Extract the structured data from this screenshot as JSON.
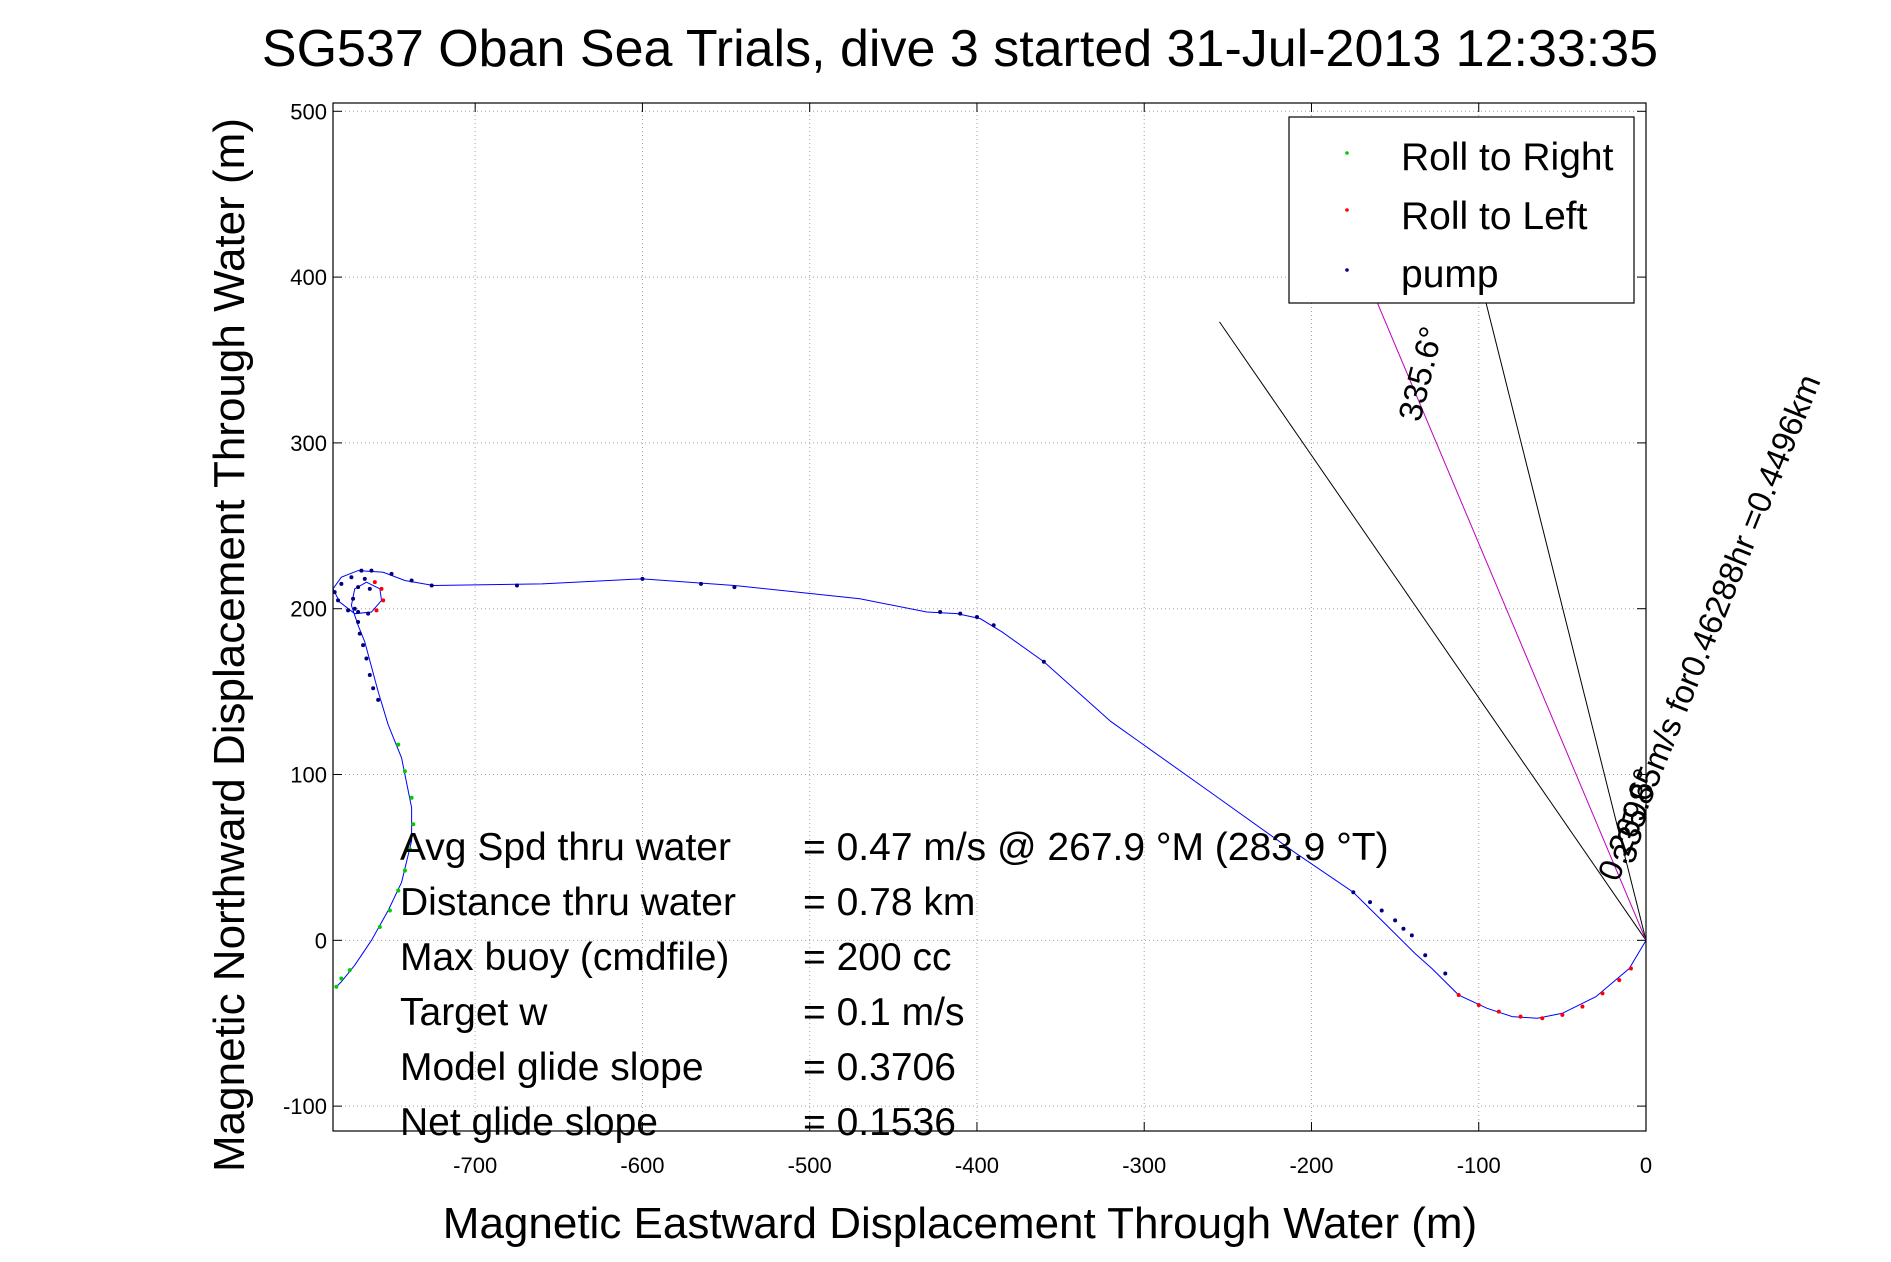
{
  "chart_data": {
    "type": "scatter",
    "title": "SG537 Oban Sea Trials, dive 3 started 31-Jul-2013 12:33:35",
    "xlabel": "Magnetic Eastward Displacement Through Water (m)",
    "ylabel": "Magnetic Northward Displacement Through Water (m)",
    "xlim": [
      -785,
      0
    ],
    "ylim": [
      -115,
      505
    ],
    "xticks": [
      -700,
      -600,
      -500,
      -400,
      -300,
      -200,
      -100,
      0
    ],
    "yticks": [
      -100,
      0,
      100,
      200,
      300,
      400,
      500
    ],
    "grid": true,
    "legend_position": "top-right",
    "colors": {
      "track": "#0000ff",
      "roll_right": "#00cc00",
      "roll_left": "#ff0000",
      "pump": "#000080",
      "axes": "#000000",
      "grid": "#a0a0a0"
    },
    "track": [
      [
        0,
        0
      ],
      [
        -10,
        -17
      ],
      [
        -30,
        -34
      ],
      [
        -50,
        -44
      ],
      [
        -65,
        -47
      ],
      [
        -80,
        -46
      ],
      [
        -95,
        -41
      ],
      [
        -112,
        -33
      ],
      [
        -128,
        -17
      ],
      [
        -138,
        -8
      ],
      [
        -155,
        9
      ],
      [
        -175,
        29
      ],
      [
        -210,
        53
      ],
      [
        -260,
        89
      ],
      [
        -320,
        132
      ],
      [
        -360,
        168
      ],
      [
        -385,
        186
      ],
      [
        -398,
        194
      ],
      [
        -412,
        197
      ],
      [
        -430,
        198
      ],
      [
        -470,
        206
      ],
      [
        -545,
        214
      ],
      [
        -600,
        218
      ],
      [
        -660,
        215
      ],
      [
        -725,
        214
      ],
      [
        -742,
        217
      ],
      [
        -755,
        222
      ],
      [
        -770,
        223
      ],
      [
        -780,
        219
      ],
      [
        -785,
        212
      ],
      [
        -781,
        204
      ],
      [
        -772,
        197
      ],
      [
        -762,
        198
      ],
      [
        -756,
        205
      ],
      [
        -757,
        212
      ],
      [
        -765,
        216
      ],
      [
        -772,
        212
      ],
      [
        -774,
        202
      ],
      [
        -770,
        190
      ],
      [
        -766,
        180
      ],
      [
        -762,
        165
      ],
      [
        -758,
        150
      ],
      [
        -752,
        130
      ],
      [
        -744,
        110
      ],
      [
        -738,
        80
      ],
      [
        -738,
        60
      ],
      [
        -744,
        35
      ],
      [
        -752,
        18
      ],
      [
        -762,
        0
      ],
      [
        -772,
        -15
      ],
      [
        -780,
        -25
      ],
      [
        -783,
        -28
      ]
    ],
    "series": [
      {
        "name": "Roll to Right",
        "points": [
          [
            -746,
            118
          ],
          [
            -742,
            102
          ],
          [
            -738,
            86
          ],
          [
            -737,
            70
          ],
          [
            -739,
            55
          ],
          [
            -742,
            42
          ],
          [
            -746,
            30
          ],
          [
            -751,
            18
          ],
          [
            -757,
            8
          ],
          [
            -775,
            -18
          ],
          [
            -780,
            -23
          ],
          [
            -783,
            -28
          ]
        ]
      },
      {
        "name": "Roll to Left",
        "points": [
          [
            -112,
            -33
          ],
          [
            -100,
            -39
          ],
          [
            -88,
            -43
          ],
          [
            -75,
            -46
          ],
          [
            -62,
            -47
          ],
          [
            -50,
            -45
          ],
          [
            -38,
            -40
          ],
          [
            -26,
            -32
          ],
          [
            -16,
            -24
          ],
          [
            -9,
            -17
          ],
          [
            -759,
            199
          ],
          [
            -755,
            205
          ],
          [
            -756,
            212
          ],
          [
            -760,
            216
          ]
        ]
      },
      {
        "name": "pump",
        "points": [
          [
            -774,
            219
          ],
          [
            -768,
            223
          ],
          [
            -762,
            223
          ],
          [
            -750,
            221
          ],
          [
            -738,
            217
          ],
          [
            -726,
            214
          ],
          [
            -675,
            214
          ],
          [
            -600,
            218
          ],
          [
            -565,
            215
          ],
          [
            -545,
            213
          ],
          [
            -422,
            198
          ],
          [
            -410,
            197
          ],
          [
            -400,
            195
          ],
          [
            -390,
            190
          ],
          [
            -360,
            168
          ],
          [
            -175,
            29
          ],
          [
            -165,
            23
          ],
          [
            -158,
            18
          ],
          [
            -150,
            12
          ],
          [
            -145,
            7
          ],
          [
            -140,
            3
          ],
          [
            -132,
            -9
          ],
          [
            -120,
            -20
          ],
          [
            -780,
            215
          ],
          [
            -784,
            210
          ],
          [
            -782,
            205
          ],
          [
            -776,
            199
          ],
          [
            -770,
            198
          ],
          [
            -764,
            197
          ],
          [
            -770,
            213
          ],
          [
            -773,
            206
          ],
          [
            -772,
            200
          ],
          [
            -770,
            192
          ],
          [
            -769,
            185
          ],
          [
            -767,
            178
          ],
          [
            -765,
            170
          ],
          [
            -763,
            160
          ],
          [
            -761,
            152
          ],
          [
            -758,
            145
          ],
          [
            -766,
            218
          ],
          [
            -763,
            212
          ]
        ]
      }
    ],
    "reference_lines": [
      {
        "from": [
          0,
          0
        ],
        "to": [
          -255,
          373
        ],
        "color": "#000000"
      },
      {
        "from": [
          0,
          0
        ],
        "to": [
          -100,
          402
        ],
        "color": "#000000"
      },
      {
        "from": [
          0,
          0
        ],
        "to": [
          -165,
          395
        ],
        "color": "#c000c0"
      }
    ],
    "annotations": [
      "Avg Spd thru water",
      "=  0.47 m/s @ 267.9 °M (283.9 °T)",
      "Distance thru water",
      "=  0.78 km",
      "Max buoy (cmdfile)",
      "= 200 cc",
      "Target w",
      "= 0.1 m/s",
      "Model glide slope",
      "= 0.3706",
      "Net glide slope",
      "= 0.1536"
    ],
    "drift_label": "0.26985m/s for0.46288hr =0.4496km",
    "heading_label_1": "335.6°",
    "heading_label_2": "335.6°"
  }
}
